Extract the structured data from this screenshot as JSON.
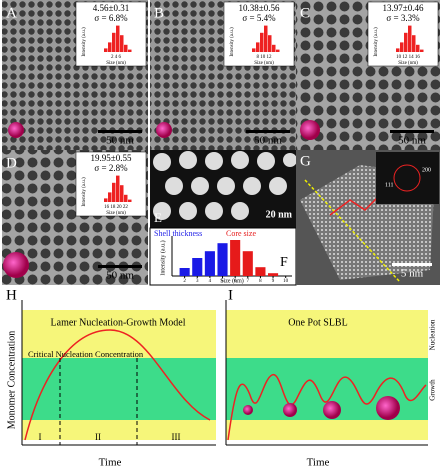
{
  "tem_panels": [
    {
      "label": "A",
      "mean": "4.56±0.31",
      "sigma": "σ = 6.8%",
      "scale": "50 nm",
      "inset_xticks": "2  4  6"
    },
    {
      "label": "B",
      "mean": "10.38±0.56",
      "sigma": "σ = 5.4%",
      "scale": "50 nm",
      "inset_xticks": "8  10  12"
    },
    {
      "label": "C",
      "mean": "13.97±0.46",
      "sigma": "σ = 3.3%",
      "scale": "50 nm",
      "inset_xticks": "10 12 14 16"
    },
    {
      "label": "D",
      "mean": "19.95±0.55",
      "sigma": "σ = 2.8%",
      "scale": "50 nm",
      "inset_xticks": "16 18 20 22"
    }
  ],
  "inset_ylabel": "Intensity (a.u.)",
  "inset_xlabel": "Size (nm)",
  "panel_e": {
    "label": "E",
    "scale": "20 nm"
  },
  "panel_g": {
    "label": "G",
    "scale": "5 nm",
    "fft": [
      "111",
      "200"
    ]
  },
  "histogram": {
    "label": "F",
    "ylabel": "Intensity (a.u.)",
    "xlabel": "Size (nm)",
    "xlim": [
      1,
      10.5
    ],
    "ylim": [
      0,
      1
    ],
    "xticks": [
      2,
      3,
      4,
      5,
      6,
      7,
      8,
      9,
      10
    ],
    "series": [
      {
        "name": "Shell thickness",
        "color": "#1a1ae6",
        "x": [
          2,
          3,
          4,
          5
        ],
        "values": [
          0.2,
          0.45,
          0.62,
          0.82
        ]
      },
      {
        "name": "Core size",
        "color": "#e61a1a",
        "x": [
          6,
          7,
          8,
          9
        ],
        "values": [
          0.9,
          0.62,
          0.22,
          0.07
        ]
      }
    ]
  },
  "panel_h": {
    "label": "H",
    "title": "Lamer Nucleation-Growth Model",
    "critical": "Critical Nucleation Concentration",
    "stages": [
      "I",
      "II",
      "III"
    ],
    "xlabel": "Time",
    "ylabel": "Monomer Concentration"
  },
  "panel_i": {
    "label": "I",
    "title": "One Pot SLBL",
    "nucleation": "Nucleation",
    "growth": "Growth",
    "xlabel": "Time"
  }
}
